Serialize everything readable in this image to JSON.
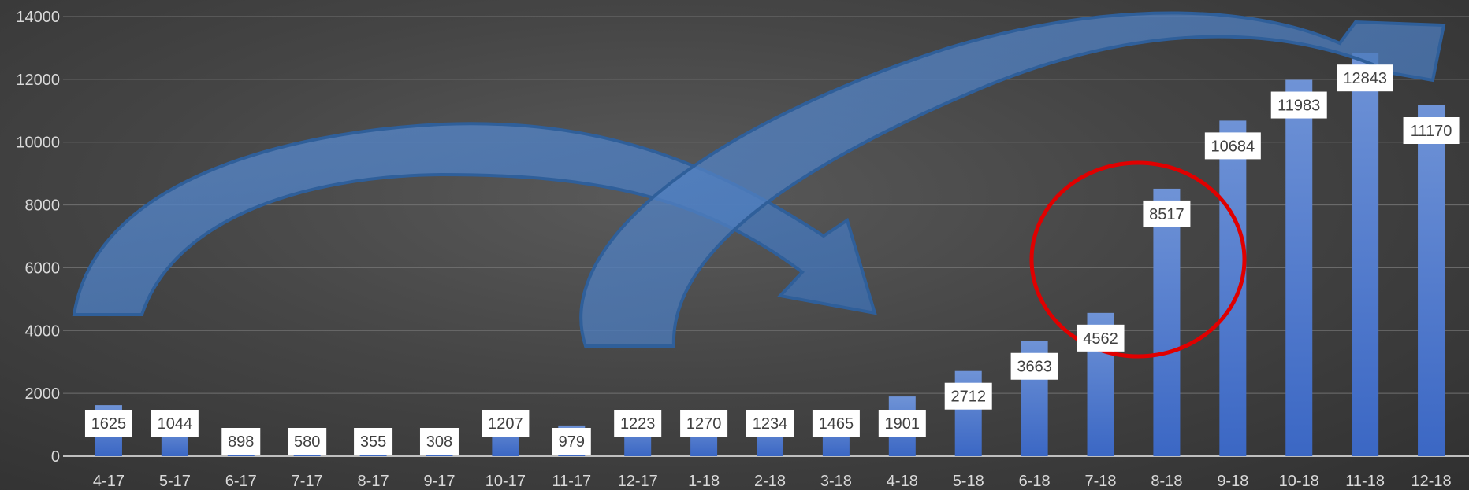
{
  "chart_data": {
    "type": "bar",
    "title": "",
    "xlabel": "",
    "ylabel": "",
    "ylim": [
      0,
      14000
    ],
    "yticks": [
      0,
      2000,
      4000,
      6000,
      8000,
      10000,
      12000,
      14000
    ],
    "grid": true,
    "legend": "none",
    "categories": [
      "4-17",
      "5-17",
      "6-17",
      "7-17",
      "8-17",
      "9-17",
      "10-17",
      "11-17",
      "12-17",
      "1-18",
      "2-18",
      "3-18",
      "4-18",
      "5-18",
      "6-18",
      "7-18",
      "8-18",
      "9-18",
      "10-18",
      "11-18",
      "12-18"
    ],
    "series": [
      {
        "values": [
          1625,
          1044,
          898,
          580,
          355,
          308,
          1207,
          979,
          1223,
          1270,
          1234,
          1465,
          1901,
          2712,
          3663,
          4562,
          8517,
          10684,
          11983,
          12843,
          11170
        ]
      }
    ],
    "annotations": [
      {
        "kind": "curved-arrow",
        "from_category": "4-17",
        "to_category": "4-18"
      },
      {
        "kind": "curved-arrow",
        "from_category": "12-17",
        "to_category": "12-18"
      },
      {
        "kind": "circle",
        "around_category": "8-18",
        "color": "#e00000"
      }
    ],
    "colors": {
      "bar_top": "#6f93d6",
      "bar_bottom": "#3b67c4",
      "arrow_fill": "#4f7fc0",
      "arrow_stroke": "#2f5f9a",
      "label_bg": "#ffffff",
      "axis_text": "#d9d9d9",
      "circle": "#e00000"
    }
  }
}
